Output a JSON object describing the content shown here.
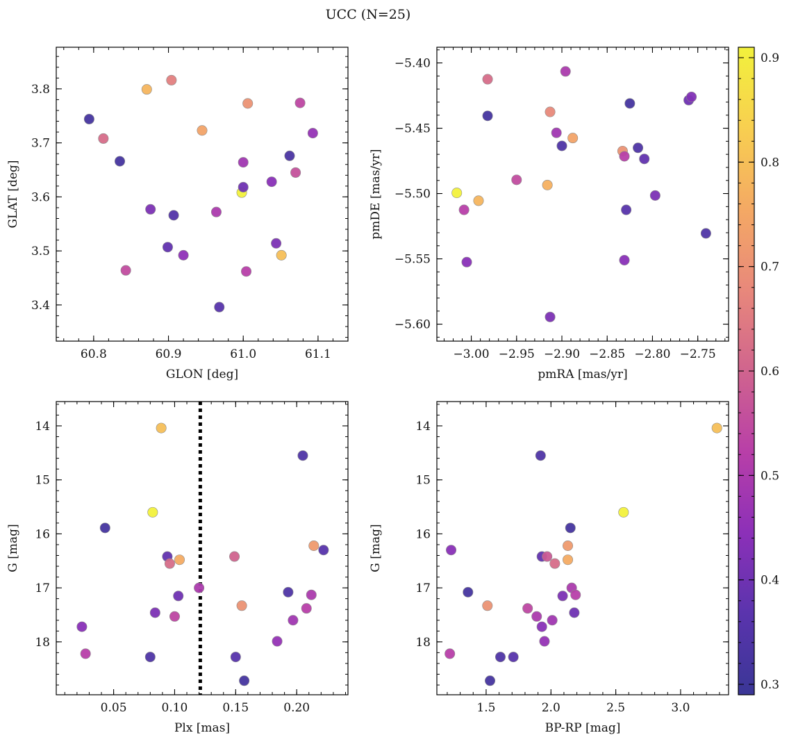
{
  "figure": {
    "suptitle": "UCC (N=25)"
  },
  "colorbar": {
    "min": 0.29,
    "max": 0.91,
    "ticks": [
      0.3,
      0.4,
      0.5,
      0.6,
      0.7,
      0.8,
      0.9
    ],
    "tick_labels": [
      "0.3",
      "0.4",
      "0.5",
      "0.6",
      "0.7",
      "0.8",
      "0.9"
    ],
    "colormap": "plasma-truncated",
    "stops": [
      "#3a3696",
      "#5a34ad",
      "#8c30b8",
      "#b83fa8",
      "#d0648e",
      "#e8887b",
      "#f4a964",
      "#f8cf50",
      "#f2f13c"
    ]
  },
  "chart_data": [
    {
      "type": "scatter",
      "xlabel": "GLON [deg]",
      "ylabel": "GLAT [deg]",
      "xlim": [
        60.75,
        61.14
      ],
      "ylim": [
        3.333,
        3.877
      ],
      "xticks": [
        60.8,
        60.9,
        61.0,
        61.1
      ],
      "xtick_labels": [
        "60.8",
        "60.9",
        "61.0",
        "61.1"
      ],
      "yticks": [
        3.4,
        3.5,
        3.6,
        3.7,
        3.8
      ],
      "ytick_labels": [
        "3.4",
        "3.5",
        "3.6",
        "3.7",
        "3.8"
      ],
      "y_inverted": false,
      "points": [
        {
          "x": 60.794,
          "y": 3.744,
          "c": 0.32
        },
        {
          "x": 60.813,
          "y": 3.708,
          "c": 0.62
        },
        {
          "x": 60.835,
          "y": 3.666,
          "c": 0.32
        },
        {
          "x": 60.843,
          "y": 3.464,
          "c": 0.55
        },
        {
          "x": 60.871,
          "y": 3.799,
          "c": 0.78
        },
        {
          "x": 60.876,
          "y": 3.577,
          "c": 0.42
        },
        {
          "x": 60.899,
          "y": 3.507,
          "c": 0.38
        },
        {
          "x": 60.904,
          "y": 3.816,
          "c": 0.66
        },
        {
          "x": 60.907,
          "y": 3.566,
          "c": 0.35
        },
        {
          "x": 60.92,
          "y": 3.492,
          "c": 0.45
        },
        {
          "x": 60.945,
          "y": 3.723,
          "c": 0.74
        },
        {
          "x": 60.964,
          "y": 3.572,
          "c": 0.5
        },
        {
          "x": 60.968,
          "y": 3.396,
          "c": 0.36
        },
        {
          "x": 60.998,
          "y": 3.608,
          "c": 0.91
        },
        {
          "x": 61.0,
          "y": 3.618,
          "c": 0.4
        },
        {
          "x": 61.0,
          "y": 3.664,
          "c": 0.48
        },
        {
          "x": 61.004,
          "y": 3.462,
          "c": 0.52
        },
        {
          "x": 61.006,
          "y": 3.773,
          "c": 0.7
        },
        {
          "x": 61.038,
          "y": 3.628,
          "c": 0.44
        },
        {
          "x": 61.044,
          "y": 3.514,
          "c": 0.42
        },
        {
          "x": 61.051,
          "y": 3.492,
          "c": 0.8
        },
        {
          "x": 61.062,
          "y": 3.676,
          "c": 0.33
        },
        {
          "x": 61.07,
          "y": 3.645,
          "c": 0.56
        },
        {
          "x": 61.076,
          "y": 3.774,
          "c": 0.54
        },
        {
          "x": 61.093,
          "y": 3.718,
          "c": 0.46
        }
      ]
    },
    {
      "type": "scatter",
      "xlabel": "pmRA [mas/yr]",
      "ylabel": "pmDE [mas/yr]",
      "xlim": [
        -3.038,
        -2.716
      ],
      "ylim": [
        -5.613,
        -5.388
      ],
      "xticks": [
        -3.0,
        -2.95,
        -2.9,
        -2.85,
        -2.8,
        -2.75
      ],
      "xtick_labels": [
        "−3.00",
        "−2.95",
        "−2.90",
        "−2.85",
        "−2.80",
        "−2.75"
      ],
      "yticks": [
        -5.6,
        -5.55,
        -5.5,
        -5.45,
        -5.4
      ],
      "ytick_labels": [
        "−5.60",
        "−5.55",
        "−5.50",
        "−5.45",
        "−5.40"
      ],
      "y_inverted": false,
      "points": [
        {
          "x": -3.016,
          "y": -5.4995,
          "c": 0.91
        },
        {
          "x": -3.008,
          "y": -5.5125,
          "c": 0.52
        },
        {
          "x": -3.005,
          "y": -5.5525,
          "c": 0.44
        },
        {
          "x": -2.992,
          "y": -5.5055,
          "c": 0.78
        },
        {
          "x": -2.982,
          "y": -5.4125,
          "c": 0.62
        },
        {
          "x": -2.982,
          "y": -5.4405,
          "c": 0.32
        },
        {
          "x": -2.95,
          "y": -5.4895,
          "c": 0.55
        },
        {
          "x": -2.916,
          "y": -5.4935,
          "c": 0.77
        },
        {
          "x": -2.913,
          "y": -5.4375,
          "c": 0.68
        },
        {
          "x": -2.913,
          "y": -5.5945,
          "c": 0.42
        },
        {
          "x": -2.906,
          "y": -5.4535,
          "c": 0.48
        },
        {
          "x": -2.9,
          "y": -5.4635,
          "c": 0.34
        },
        {
          "x": -2.896,
          "y": -5.4065,
          "c": 0.5
        },
        {
          "x": -2.888,
          "y": -5.4575,
          "c": 0.74
        },
        {
          "x": -2.833,
          "y": -5.4675,
          "c": 0.7
        },
        {
          "x": -2.831,
          "y": -5.4715,
          "c": 0.52
        },
        {
          "x": -2.831,
          "y": -5.551,
          "c": 0.44
        },
        {
          "x": -2.829,
          "y": -5.5125,
          "c": 0.36
        },
        {
          "x": -2.825,
          "y": -5.431,
          "c": 0.32
        },
        {
          "x": -2.816,
          "y": -5.465,
          "c": 0.34
        },
        {
          "x": -2.809,
          "y": -5.4735,
          "c": 0.38
        },
        {
          "x": -2.797,
          "y": -5.5015,
          "c": 0.42
        },
        {
          "x": -2.76,
          "y": -5.4285,
          "c": 0.4
        },
        {
          "x": -2.757,
          "y": -5.426,
          "c": 0.43
        },
        {
          "x": -2.741,
          "y": -5.5305,
          "c": 0.34
        }
      ]
    },
    {
      "type": "scatter",
      "xlabel": "Plx [mas]",
      "ylabel": "G [mag]",
      "xlim": [
        0.003,
        0.242
      ],
      "ylim": [
        13.55,
        18.98
      ],
      "xticks": [
        0.05,
        0.1,
        0.15,
        0.2
      ],
      "xtick_labels": [
        "0.05",
        "0.10",
        "0.15",
        "0.20"
      ],
      "yticks": [
        14,
        15,
        16,
        17,
        18
      ],
      "ytick_labels": [
        "14",
        "15",
        "16",
        "17",
        "18"
      ],
      "y_inverted": true,
      "vline": {
        "x": 0.121,
        "style": "dotted",
        "color": "#000000"
      },
      "points": [
        {
          "x": 0.024,
          "y": 17.72,
          "c": 0.44
        },
        {
          "x": 0.027,
          "y": 18.22,
          "c": 0.52
        },
        {
          "x": 0.043,
          "y": 15.89,
          "c": 0.32
        },
        {
          "x": 0.08,
          "y": 18.28,
          "c": 0.34
        },
        {
          "x": 0.082,
          "y": 15.6,
          "c": 0.91
        },
        {
          "x": 0.089,
          "y": 14.04,
          "c": 0.8
        },
        {
          "x": 0.084,
          "y": 17.46,
          "c": 0.42
        },
        {
          "x": 0.094,
          "y": 16.42,
          "c": 0.38
        },
        {
          "x": 0.096,
          "y": 16.55,
          "c": 0.62
        },
        {
          "x": 0.1,
          "y": 17.53,
          "c": 0.54
        },
        {
          "x": 0.103,
          "y": 17.15,
          "c": 0.4
        },
        {
          "x": 0.104,
          "y": 16.48,
          "c": 0.76
        },
        {
          "x": 0.12,
          "y": 17.0,
          "c": 0.5
        },
        {
          "x": 0.149,
          "y": 16.42,
          "c": 0.6
        },
        {
          "x": 0.15,
          "y": 18.28,
          "c": 0.36
        },
        {
          "x": 0.155,
          "y": 17.33,
          "c": 0.7
        },
        {
          "x": 0.157,
          "y": 18.72,
          "c": 0.32
        },
        {
          "x": 0.184,
          "y": 17.99,
          "c": 0.46
        },
        {
          "x": 0.193,
          "y": 17.08,
          "c": 0.34
        },
        {
          "x": 0.197,
          "y": 17.6,
          "c": 0.48
        },
        {
          "x": 0.205,
          "y": 14.55,
          "c": 0.34
        },
        {
          "x": 0.208,
          "y": 17.38,
          "c": 0.52
        },
        {
          "x": 0.212,
          "y": 17.13,
          "c": 0.5
        },
        {
          "x": 0.214,
          "y": 16.22,
          "c": 0.72
        },
        {
          "x": 0.222,
          "y": 16.3,
          "c": 0.36
        }
      ]
    },
    {
      "type": "scatter",
      "xlabel": "BP-RP [mag]",
      "ylabel": "G [mag]",
      "xlim": [
        1.12,
        3.37
      ],
      "ylim": [
        13.55,
        18.98
      ],
      "xticks": [
        1.5,
        2.0,
        2.5,
        3.0
      ],
      "xtick_labels": [
        "1.5",
        "2.0",
        "2.5",
        "3.0"
      ],
      "yticks": [
        14,
        15,
        16,
        17,
        18
      ],
      "ytick_labels": [
        "14",
        "15",
        "16",
        "17",
        "18"
      ],
      "y_inverted": true,
      "points": [
        {
          "x": 1.22,
          "y": 18.22,
          "c": 0.52
        },
        {
          "x": 1.23,
          "y": 16.3,
          "c": 0.44
        },
        {
          "x": 1.36,
          "y": 17.08,
          "c": 0.32
        },
        {
          "x": 1.51,
          "y": 17.33,
          "c": 0.7
        },
        {
          "x": 1.53,
          "y": 18.72,
          "c": 0.32
        },
        {
          "x": 1.61,
          "y": 18.28,
          "c": 0.34
        },
        {
          "x": 1.71,
          "y": 18.28,
          "c": 0.36
        },
        {
          "x": 1.82,
          "y": 17.38,
          "c": 0.54
        },
        {
          "x": 1.89,
          "y": 17.53,
          "c": 0.5
        },
        {
          "x": 1.92,
          "y": 14.55,
          "c": 0.34
        },
        {
          "x": 1.93,
          "y": 16.42,
          "c": 0.38
        },
        {
          "x": 1.93,
          "y": 17.72,
          "c": 0.44
        },
        {
          "x": 1.95,
          "y": 17.99,
          "c": 0.46
        },
        {
          "x": 1.97,
          "y": 16.42,
          "c": 0.58
        },
        {
          "x": 2.01,
          "y": 17.6,
          "c": 0.48
        },
        {
          "x": 2.03,
          "y": 16.55,
          "c": 0.62
        },
        {
          "x": 2.09,
          "y": 17.15,
          "c": 0.42
        },
        {
          "x": 2.13,
          "y": 16.22,
          "c": 0.72
        },
        {
          "x": 2.13,
          "y": 16.48,
          "c": 0.76
        },
        {
          "x": 2.15,
          "y": 15.89,
          "c": 0.32
        },
        {
          "x": 2.16,
          "y": 17.0,
          "c": 0.5
        },
        {
          "x": 2.18,
          "y": 17.46,
          "c": 0.4
        },
        {
          "x": 2.19,
          "y": 17.13,
          "c": 0.52
        },
        {
          "x": 2.56,
          "y": 15.6,
          "c": 0.91
        },
        {
          "x": 3.28,
          "y": 14.04,
          "c": 0.8
        }
      ]
    }
  ]
}
